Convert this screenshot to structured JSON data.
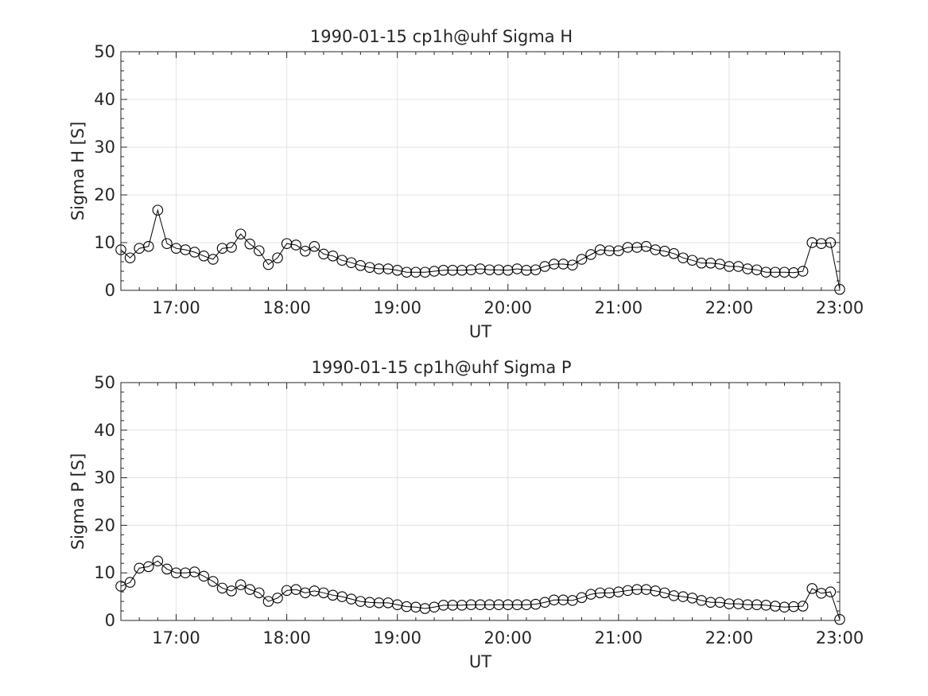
{
  "chart_data": [
    {
      "type": "line",
      "title": "1990-01-15  cp1h@uhf Sigma H",
      "xlabel": "UT",
      "ylabel": "Sigma H [S]",
      "xlim": [
        "16:30",
        "23:00"
      ],
      "ylim": [
        0,
        50
      ],
      "xticks": [
        "17:00",
        "18:00",
        "19:00",
        "20:00",
        "21:00",
        "22:00",
        "23:00"
      ],
      "yticks": [
        "0",
        "10",
        "20",
        "30",
        "40",
        "50"
      ],
      "grid": true,
      "marker": "open-circle",
      "color": "#000000",
      "series": [
        {
          "x": [
            "16:30",
            "16:35",
            "16:40",
            "16:45",
            "16:50",
            "16:55",
            "17:00",
            "17:05",
            "17:10",
            "17:15",
            "17:20",
            "17:25",
            "17:30",
            "17:35",
            "17:40",
            "17:45",
            "17:50",
            "17:55",
            "18:00",
            "18:05",
            "18:10",
            "18:15",
            "18:20",
            "18:25",
            "18:30",
            "18:35",
            "18:40",
            "18:45",
            "18:50",
            "18:55",
            "19:00",
            "19:05",
            "19:10",
            "19:15",
            "19:20",
            "19:25",
            "19:30",
            "19:35",
            "19:40",
            "19:45",
            "19:50",
            "19:55",
            "20:00",
            "20:05",
            "20:10",
            "20:15",
            "20:20",
            "20:25",
            "20:30",
            "20:35",
            "20:40",
            "20:45",
            "20:50",
            "20:55",
            "21:00",
            "21:05",
            "21:10",
            "21:15",
            "21:20",
            "21:25",
            "21:30",
            "21:35",
            "21:40",
            "21:45",
            "21:50",
            "21:55",
            "22:00",
            "22:05",
            "22:10",
            "22:15",
            "22:20",
            "22:25",
            "22:30",
            "22:35",
            "22:40",
            "22:45",
            "22:50",
            "22:55",
            "23:00"
          ],
          "values": [
            8.5,
            6.8,
            8.8,
            9.2,
            16.8,
            9.8,
            8.8,
            8.5,
            8.0,
            7.2,
            6.5,
            8.8,
            9.0,
            11.8,
            9.7,
            8.3,
            5.4,
            6.8,
            9.8,
            9.5,
            8.2,
            9.2,
            7.6,
            7.2,
            6.3,
            5.8,
            5.2,
            4.8,
            4.5,
            4.5,
            4.2,
            3.8,
            3.8,
            3.8,
            4.0,
            4.2,
            4.2,
            4.2,
            4.3,
            4.5,
            4.3,
            4.3,
            4.2,
            4.5,
            4.2,
            4.3,
            5.0,
            5.5,
            5.5,
            5.3,
            6.5,
            7.5,
            8.5,
            8.3,
            8.3,
            9.0,
            9.0,
            9.2,
            8.5,
            8.2,
            7.7,
            6.8,
            6.3,
            5.7,
            5.7,
            5.5,
            5.0,
            5.0,
            4.5,
            4.3,
            3.8,
            3.8,
            3.8,
            3.7,
            4.0,
            10.0,
            9.8,
            10.0,
            0.2
          ]
        }
      ]
    },
    {
      "type": "line",
      "title": "1990-01-15  cp1h@uhf Sigma P",
      "xlabel": "UT",
      "ylabel": "Sigma P [S]",
      "xlim": [
        "16:30",
        "23:00"
      ],
      "ylim": [
        0,
        50
      ],
      "xticks": [
        "17:00",
        "18:00",
        "19:00",
        "20:00",
        "21:00",
        "22:00",
        "23:00"
      ],
      "yticks": [
        "0",
        "10",
        "20",
        "30",
        "40",
        "50"
      ],
      "grid": true,
      "marker": "open-circle",
      "color": "#000000",
      "series": [
        {
          "x": [
            "16:30",
            "16:35",
            "16:40",
            "16:45",
            "16:50",
            "16:55",
            "17:00",
            "17:05",
            "17:10",
            "17:15",
            "17:20",
            "17:25",
            "17:30",
            "17:35",
            "17:40",
            "17:45",
            "17:50",
            "17:55",
            "18:00",
            "18:05",
            "18:10",
            "18:15",
            "18:20",
            "18:25",
            "18:30",
            "18:35",
            "18:40",
            "18:45",
            "18:50",
            "18:55",
            "19:00",
            "19:05",
            "19:10",
            "19:15",
            "19:20",
            "19:25",
            "19:30",
            "19:35",
            "19:40",
            "19:45",
            "19:50",
            "19:55",
            "20:00",
            "20:05",
            "20:10",
            "20:15",
            "20:20",
            "20:25",
            "20:30",
            "20:35",
            "20:40",
            "20:45",
            "20:50",
            "20:55",
            "21:00",
            "21:05",
            "21:10",
            "21:15",
            "21:20",
            "21:25",
            "21:30",
            "21:35",
            "21:40",
            "21:45",
            "21:50",
            "21:55",
            "22:00",
            "22:05",
            "22:10",
            "22:15",
            "22:20",
            "22:25",
            "22:30",
            "22:35",
            "22:40",
            "22:45",
            "22:50",
            "22:55",
            "23:00"
          ],
          "values": [
            7.2,
            8.0,
            11.0,
            11.3,
            12.5,
            10.8,
            10.0,
            10.0,
            10.2,
            9.3,
            8.2,
            6.8,
            6.2,
            7.5,
            6.5,
            5.8,
            4.0,
            4.7,
            6.3,
            6.5,
            5.8,
            6.2,
            5.8,
            5.3,
            5.0,
            4.5,
            4.0,
            3.8,
            3.7,
            3.7,
            3.3,
            2.9,
            2.8,
            2.5,
            2.8,
            3.2,
            3.2,
            3.2,
            3.3,
            3.3,
            3.3,
            3.3,
            3.3,
            3.3,
            3.3,
            3.4,
            3.8,
            4.3,
            4.3,
            4.2,
            4.8,
            5.5,
            5.8,
            5.8,
            6.0,
            6.3,
            6.5,
            6.5,
            6.2,
            5.8,
            5.2,
            5.0,
            4.7,
            4.2,
            3.8,
            3.8,
            3.5,
            3.5,
            3.3,
            3.3,
            3.2,
            3.0,
            2.8,
            2.9,
            3.0,
            6.7,
            5.7,
            6.0,
            0.2
          ]
        }
      ]
    }
  ]
}
